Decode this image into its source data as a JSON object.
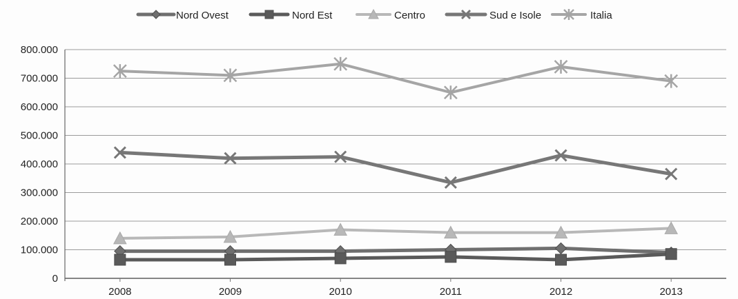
{
  "chart_data": {
    "type": "line",
    "title": "",
    "xlabel": "",
    "ylabel": "",
    "categories": [
      "2008",
      "2009",
      "2010",
      "2011",
      "2012",
      "2013"
    ],
    "ylim": [
      0,
      800000
    ],
    "yticks": [
      0,
      100000,
      200000,
      300000,
      400000,
      500000,
      600000,
      700000,
      800000
    ],
    "ytick_labels": [
      "0",
      "100.000",
      "200.000",
      "300.000",
      "400.000",
      "500.000",
      "600.000",
      "700.000",
      "800.000"
    ],
    "grid": true,
    "legend_position": "top",
    "series": [
      {
        "name": "Nord Ovest",
        "marker": "diamond",
        "color": "#6f6f6f",
        "values": [
          95000,
          95000,
          95000,
          100000,
          105000,
          90000
        ]
      },
      {
        "name": "Nord Est",
        "marker": "square",
        "color": "#5a5a5a",
        "values": [
          65000,
          65000,
          70000,
          75000,
          65000,
          85000
        ]
      },
      {
        "name": "Centro",
        "marker": "triangle",
        "color": "#b8b8b8",
        "values": [
          140000,
          145000,
          170000,
          160000,
          160000,
          175000
        ]
      },
      {
        "name": "Sud e Isole",
        "marker": "x",
        "color": "#777777",
        "values": [
          440000,
          420000,
          425000,
          335000,
          430000,
          365000
        ]
      },
      {
        "name": "Italia",
        "marker": "star",
        "color": "#a5a5a5",
        "values": [
          725000,
          710000,
          750000,
          650000,
          740000,
          690000
        ]
      }
    ]
  }
}
